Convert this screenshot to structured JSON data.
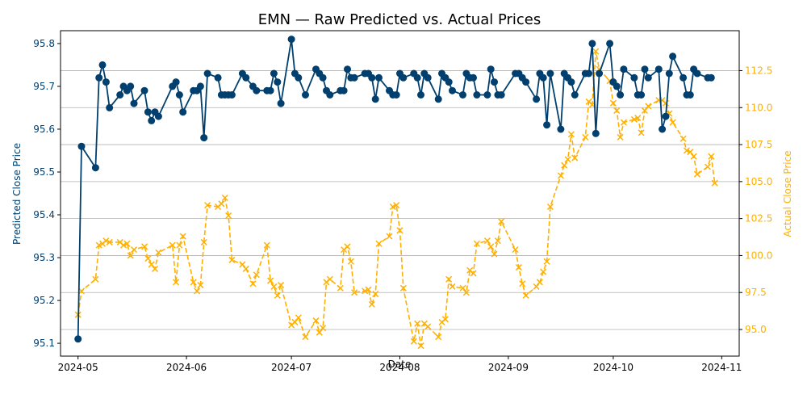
{
  "chart_data": {
    "type": "line",
    "title": "EMN — Raw Predicted vs. Actual Prices",
    "xlabel": "Date",
    "ylabel": "Predicted Close Price",
    "ylabel_right": "Actual Close Price",
    "xlim": [
      "2024-04-26",
      "2024-11-06"
    ],
    "ylim": [
      95.07,
      95.83
    ],
    "ylim_right": [
      93.2,
      115.2
    ],
    "x_ticks": [
      "2024-05",
      "2024-06",
      "2024-07",
      "2024-08",
      "2024-09",
      "2024-10",
      "2024-11"
    ],
    "y_ticks": [
      95.1,
      95.2,
      95.3,
      95.4,
      95.5,
      95.6,
      95.7,
      95.8
    ],
    "y_ticks_right": [
      95.0,
      97.5,
      100.0,
      102.5,
      105.0,
      107.5,
      110.0,
      112.5
    ],
    "grid": "horizontal lines at right-axis ticks",
    "series": [
      {
        "name": "Predicted",
        "axis": "left",
        "color": "#003f6e",
        "marker": "circle",
        "line": "solid",
        "points": [
          [
            "2024-05-01",
            95.11
          ],
          [
            "2024-05-02",
            95.56
          ],
          [
            "2024-05-06",
            95.51
          ],
          [
            "2024-05-07",
            95.72
          ],
          [
            "2024-05-08",
            95.75
          ],
          [
            "2024-05-09",
            95.71
          ],
          [
            "2024-05-10",
            95.65
          ],
          [
            "2024-05-13",
            95.68
          ],
          [
            "2024-05-14",
            95.7
          ],
          [
            "2024-05-15",
            95.69
          ],
          [
            "2024-05-16",
            95.7
          ],
          [
            "2024-05-17",
            95.66
          ],
          [
            "2024-05-20",
            95.69
          ],
          [
            "2024-05-21",
            95.64
          ],
          [
            "2024-05-22",
            95.62
          ],
          [
            "2024-05-23",
            95.64
          ],
          [
            "2024-05-24",
            95.63
          ],
          [
            "2024-05-28",
            95.7
          ],
          [
            "2024-05-29",
            95.71
          ],
          [
            "2024-05-30",
            95.68
          ],
          [
            "2024-05-31",
            95.64
          ],
          [
            "2024-06-03",
            95.69
          ],
          [
            "2024-06-04",
            95.69
          ],
          [
            "2024-06-05",
            95.7
          ],
          [
            "2024-06-06",
            95.58
          ],
          [
            "2024-06-07",
            95.73
          ],
          [
            "2024-06-10",
            95.72
          ],
          [
            "2024-06-11",
            95.68
          ],
          [
            "2024-06-12",
            95.68
          ],
          [
            "2024-06-13",
            95.68
          ],
          [
            "2024-06-14",
            95.68
          ],
          [
            "2024-06-17",
            95.73
          ],
          [
            "2024-06-18",
            95.72
          ],
          [
            "2024-06-20",
            95.7
          ],
          [
            "2024-06-21",
            95.69
          ],
          [
            "2024-06-24",
            95.69
          ],
          [
            "2024-06-25",
            95.69
          ],
          [
            "2024-06-26",
            95.73
          ],
          [
            "2024-06-27",
            95.71
          ],
          [
            "2024-06-28",
            95.66
          ],
          [
            "2024-07-01",
            95.81
          ],
          [
            "2024-07-02",
            95.73
          ],
          [
            "2024-07-03",
            95.72
          ],
          [
            "2024-07-05",
            95.68
          ],
          [
            "2024-07-08",
            95.74
          ],
          [
            "2024-07-09",
            95.73
          ],
          [
            "2024-07-10",
            95.72
          ],
          [
            "2024-07-11",
            95.69
          ],
          [
            "2024-07-12",
            95.68
          ],
          [
            "2024-07-15",
            95.69
          ],
          [
            "2024-07-16",
            95.69
          ],
          [
            "2024-07-17",
            95.74
          ],
          [
            "2024-07-18",
            95.72
          ],
          [
            "2024-07-19",
            95.72
          ],
          [
            "2024-07-22",
            95.73
          ],
          [
            "2024-07-23",
            95.73
          ],
          [
            "2024-07-24",
            95.72
          ],
          [
            "2024-07-25",
            95.67
          ],
          [
            "2024-07-26",
            95.72
          ],
          [
            "2024-07-29",
            95.69
          ],
          [
            "2024-07-30",
            95.68
          ],
          [
            "2024-07-31",
            95.68
          ],
          [
            "2024-08-01",
            95.73
          ],
          [
            "2024-08-02",
            95.72
          ],
          [
            "2024-08-05",
            95.73
          ],
          [
            "2024-08-06",
            95.72
          ],
          [
            "2024-08-07",
            95.68
          ],
          [
            "2024-08-08",
            95.73
          ],
          [
            "2024-08-09",
            95.72
          ],
          [
            "2024-08-12",
            95.67
          ],
          [
            "2024-08-13",
            95.73
          ],
          [
            "2024-08-14",
            95.72
          ],
          [
            "2024-08-15",
            95.71
          ],
          [
            "2024-08-16",
            95.69
          ],
          [
            "2024-08-19",
            95.68
          ],
          [
            "2024-08-20",
            95.73
          ],
          [
            "2024-08-21",
            95.72
          ],
          [
            "2024-08-22",
            95.72
          ],
          [
            "2024-08-23",
            95.68
          ],
          [
            "2024-08-26",
            95.68
          ],
          [
            "2024-08-27",
            95.74
          ],
          [
            "2024-08-28",
            95.71
          ],
          [
            "2024-08-29",
            95.68
          ],
          [
            "2024-08-30",
            95.68
          ],
          [
            "2024-09-03",
            95.73
          ],
          [
            "2024-09-04",
            95.73
          ],
          [
            "2024-09-05",
            95.72
          ],
          [
            "2024-09-06",
            95.71
          ],
          [
            "2024-09-09",
            95.67
          ],
          [
            "2024-09-10",
            95.73
          ],
          [
            "2024-09-11",
            95.72
          ],
          [
            "2024-09-12",
            95.61
          ],
          [
            "2024-09-13",
            95.73
          ],
          [
            "2024-09-16",
            95.6
          ],
          [
            "2024-09-17",
            95.73
          ],
          [
            "2024-09-18",
            95.72
          ],
          [
            "2024-09-19",
            95.71
          ],
          [
            "2024-09-20",
            95.68
          ],
          [
            "2024-09-23",
            95.73
          ],
          [
            "2024-09-24",
            95.73
          ],
          [
            "2024-09-25",
            95.8
          ],
          [
            "2024-09-26",
            95.59
          ],
          [
            "2024-09-27",
            95.73
          ],
          [
            "2024-09-30",
            95.8
          ],
          [
            "2024-10-01",
            95.71
          ],
          [
            "2024-10-02",
            95.7
          ],
          [
            "2024-10-03",
            95.68
          ],
          [
            "2024-10-04",
            95.74
          ],
          [
            "2024-10-07",
            95.72
          ],
          [
            "2024-10-08",
            95.68
          ],
          [
            "2024-10-09",
            95.68
          ],
          [
            "2024-10-10",
            95.74
          ],
          [
            "2024-10-11",
            95.72
          ],
          [
            "2024-10-14",
            95.74
          ],
          [
            "2024-10-15",
            95.6
          ],
          [
            "2024-10-16",
            95.63
          ],
          [
            "2024-10-17",
            95.73
          ],
          [
            "2024-10-18",
            95.77
          ],
          [
            "2024-10-21",
            95.72
          ],
          [
            "2024-10-22",
            95.68
          ],
          [
            "2024-10-23",
            95.68
          ],
          [
            "2024-10-24",
            95.74
          ],
          [
            "2024-10-25",
            95.73
          ],
          [
            "2024-10-28",
            95.72
          ],
          [
            "2024-10-29",
            95.72
          ]
        ]
      },
      {
        "name": "Actual",
        "axis": "right",
        "color": "#ffb000",
        "marker": "x",
        "line": "dashed",
        "points": [
          [
            "2024-05-01",
            96.0
          ],
          [
            "2024-05-02",
            97.6
          ],
          [
            "2024-05-06",
            98.4
          ],
          [
            "2024-05-07",
            100.7
          ],
          [
            "2024-05-08",
            100.8
          ],
          [
            "2024-05-09",
            101.0
          ],
          [
            "2024-05-10",
            100.9
          ],
          [
            "2024-05-13",
            100.9
          ],
          [
            "2024-05-14",
            100.7
          ],
          [
            "2024-05-15",
            100.8
          ],
          [
            "2024-05-16",
            100.0
          ],
          [
            "2024-05-17",
            100.4
          ],
          [
            "2024-05-20",
            100.6
          ],
          [
            "2024-05-21",
            99.8
          ],
          [
            "2024-05-22",
            99.4
          ],
          [
            "2024-05-23",
            99.1
          ],
          [
            "2024-05-24",
            100.2
          ],
          [
            "2024-05-28",
            100.7
          ],
          [
            "2024-05-29",
            98.2
          ],
          [
            "2024-05-30",
            100.7
          ],
          [
            "2024-05-31",
            101.3
          ],
          [
            "2024-06-03",
            98.2
          ],
          [
            "2024-06-04",
            97.6
          ],
          [
            "2024-06-05",
            98.0
          ],
          [
            "2024-06-06",
            100.9
          ],
          [
            "2024-06-07",
            103.4
          ],
          [
            "2024-06-10",
            103.3
          ],
          [
            "2024-06-11",
            103.5
          ],
          [
            "2024-06-12",
            103.9
          ],
          [
            "2024-06-13",
            102.7
          ],
          [
            "2024-06-14",
            99.7
          ],
          [
            "2024-06-17",
            99.4
          ],
          [
            "2024-06-18",
            99.1
          ],
          [
            "2024-06-20",
            98.1
          ],
          [
            "2024-06-21",
            98.7
          ],
          [
            "2024-06-24",
            100.7
          ],
          [
            "2024-06-25",
            98.3
          ],
          [
            "2024-06-26",
            97.9
          ],
          [
            "2024-06-27",
            97.3
          ],
          [
            "2024-06-28",
            98.0
          ],
          [
            "2024-07-01",
            95.3
          ],
          [
            "2024-07-02",
            95.5
          ],
          [
            "2024-07-03",
            95.8
          ],
          [
            "2024-07-05",
            94.5
          ],
          [
            "2024-07-08",
            95.6
          ],
          [
            "2024-07-09",
            94.8
          ],
          [
            "2024-07-10",
            95.1
          ],
          [
            "2024-07-11",
            98.2
          ],
          [
            "2024-07-12",
            98.4
          ],
          [
            "2024-07-15",
            97.8
          ],
          [
            "2024-07-16",
            100.4
          ],
          [
            "2024-07-17",
            100.6
          ],
          [
            "2024-07-18",
            99.6
          ],
          [
            "2024-07-19",
            97.5
          ],
          [
            "2024-07-22",
            97.6
          ],
          [
            "2024-07-23",
            97.7
          ],
          [
            "2024-07-24",
            96.7
          ],
          [
            "2024-07-25",
            97.4
          ],
          [
            "2024-07-26",
            100.8
          ],
          [
            "2024-07-29",
            101.3
          ],
          [
            "2024-07-30",
            103.3
          ],
          [
            "2024-07-31",
            103.4
          ],
          [
            "2024-08-01",
            101.7
          ],
          [
            "2024-08-02",
            97.8
          ],
          [
            "2024-08-05",
            94.2
          ],
          [
            "2024-08-06",
            95.4
          ],
          [
            "2024-08-07",
            93.9
          ],
          [
            "2024-08-08",
            95.4
          ],
          [
            "2024-08-09",
            95.2
          ],
          [
            "2024-08-12",
            94.5
          ],
          [
            "2024-08-13",
            95.5
          ],
          [
            "2024-08-14",
            95.7
          ],
          [
            "2024-08-15",
            98.4
          ],
          [
            "2024-08-16",
            97.9
          ],
          [
            "2024-08-19",
            97.8
          ],
          [
            "2024-08-20",
            97.5
          ],
          [
            "2024-08-21",
            99.0
          ],
          [
            "2024-08-22",
            98.8
          ],
          [
            "2024-08-23",
            100.8
          ],
          [
            "2024-08-26",
            101.0
          ],
          [
            "2024-08-27",
            100.6
          ],
          [
            "2024-08-28",
            100.1
          ],
          [
            "2024-08-29",
            101.0
          ],
          [
            "2024-08-30",
            102.3
          ],
          [
            "2024-09-03",
            100.4
          ],
          [
            "2024-09-04",
            99.2
          ],
          [
            "2024-09-05",
            98.1
          ],
          [
            "2024-09-06",
            97.3
          ],
          [
            "2024-09-09",
            97.9
          ],
          [
            "2024-09-10",
            98.2
          ],
          [
            "2024-09-11",
            98.9
          ],
          [
            "2024-09-12",
            99.6
          ],
          [
            "2024-09-13",
            103.3
          ],
          [
            "2024-09-16",
            105.4
          ],
          [
            "2024-09-17",
            106.1
          ],
          [
            "2024-09-18",
            106.5
          ],
          [
            "2024-09-19",
            108.2
          ],
          [
            "2024-09-20",
            106.6
          ],
          [
            "2024-09-23",
            108.0
          ],
          [
            "2024-09-24",
            110.4
          ],
          [
            "2024-09-25",
            110.2
          ],
          [
            "2024-09-26",
            113.8
          ],
          [
            "2024-09-27",
            112.6
          ],
          [
            "2024-09-30",
            111.8
          ],
          [
            "2024-10-01",
            110.3
          ],
          [
            "2024-10-02",
            109.8
          ],
          [
            "2024-10-03",
            108.0
          ],
          [
            "2024-10-04",
            109.0
          ],
          [
            "2024-10-07",
            109.2
          ],
          [
            "2024-10-08",
            109.3
          ],
          [
            "2024-10-09",
            108.3
          ],
          [
            "2024-10-10",
            109.8
          ],
          [
            "2024-10-11",
            110.1
          ],
          [
            "2024-10-14",
            110.5
          ],
          [
            "2024-10-15",
            110.5
          ],
          [
            "2024-10-16",
            110.3
          ],
          [
            "2024-10-17",
            109.6
          ],
          [
            "2024-10-18",
            109.0
          ],
          [
            "2024-10-21",
            107.9
          ],
          [
            "2024-10-22",
            107.1
          ],
          [
            "2024-10-23",
            107.0
          ],
          [
            "2024-10-24",
            106.7
          ],
          [
            "2024-10-25",
            105.5
          ],
          [
            "2024-10-28",
            106.0
          ],
          [
            "2024-10-29",
            106.7
          ],
          [
            "2024-10-30",
            104.9
          ]
        ]
      }
    ]
  }
}
